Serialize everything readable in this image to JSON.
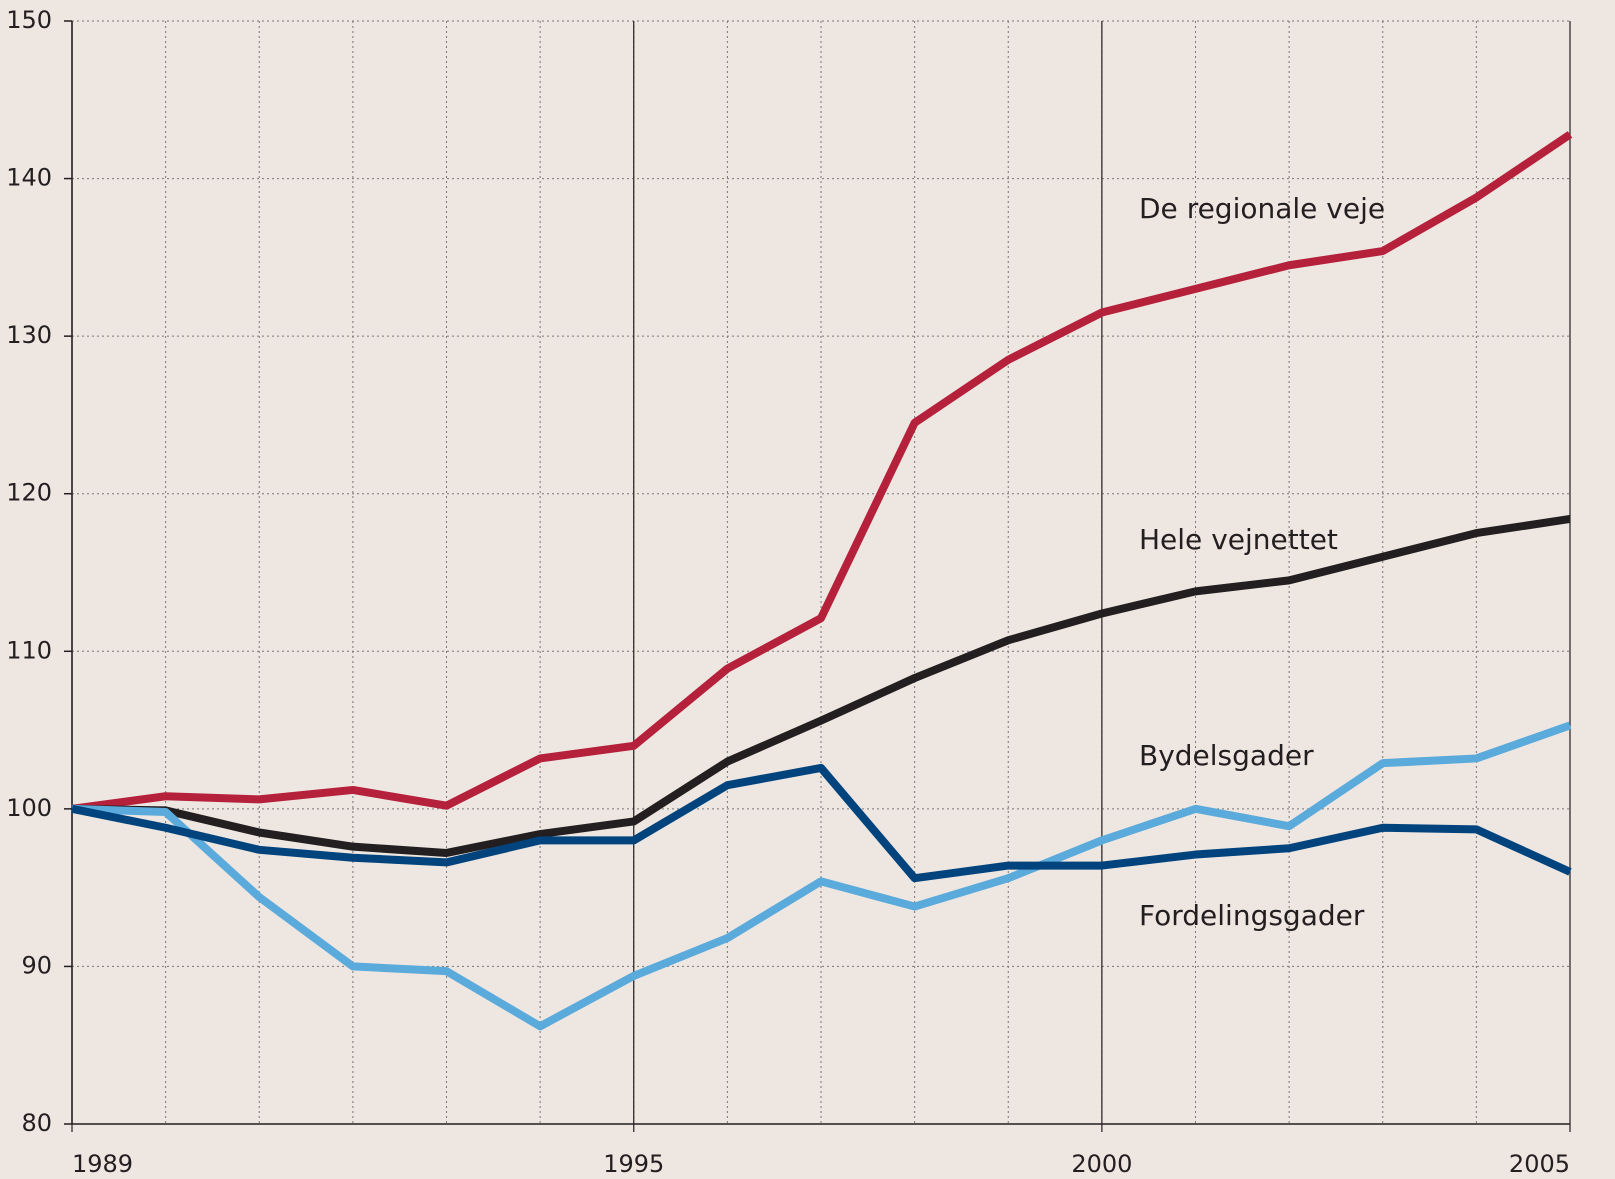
{
  "chart_data": {
    "type": "line",
    "x": [
      1989,
      1990,
      1991,
      1992,
      1993,
      1994,
      1995,
      1996,
      1997,
      1998,
      1999,
      2000,
      2001,
      2002,
      2003,
      2004,
      2005
    ],
    "series": [
      {
        "name": "De regionale veje",
        "color": "#b5203a",
        "values": [
          100,
          100.8,
          100.6,
          101.2,
          100.2,
          103.2,
          104,
          108.9,
          112.1,
          124.5,
          128.5,
          131.5,
          133,
          134.5,
          135.4,
          138.8,
          142.8
        ]
      },
      {
        "name": "Hele vejnettet",
        "color": "#231f20",
        "values": [
          100,
          99.9,
          98.5,
          97.6,
          97.2,
          98.4,
          99.2,
          103,
          105.6,
          108.3,
          110.7,
          112.4,
          113.8,
          114.5,
          116,
          117.5,
          118.4
        ]
      },
      {
        "name": "Bydelsgader",
        "color": "#5aaadb",
        "values": [
          100,
          99.8,
          94.4,
          90,
          89.7,
          86.2,
          89.4,
          91.8,
          95.4,
          93.8,
          95.6,
          98,
          100,
          98.9,
          102.9,
          103.2,
          105.3
        ]
      },
      {
        "name": "Fordelingsgader",
        "color": "#00437d",
        "values": [
          100,
          98.8,
          97.4,
          96.9,
          96.6,
          98,
          98,
          101.5,
          102.6,
          95.6,
          96.4,
          96.4,
          97.1,
          97.5,
          98.8,
          98.7,
          96
        ]
      }
    ],
    "xlim": [
      1989,
      2005
    ],
    "xticks": [
      1989,
      1995,
      2000,
      2005
    ],
    "ylim": [
      80,
      150
    ],
    "yticks": [
      80,
      90,
      100,
      110,
      120,
      130,
      140,
      150
    ],
    "grid": true
  }
}
